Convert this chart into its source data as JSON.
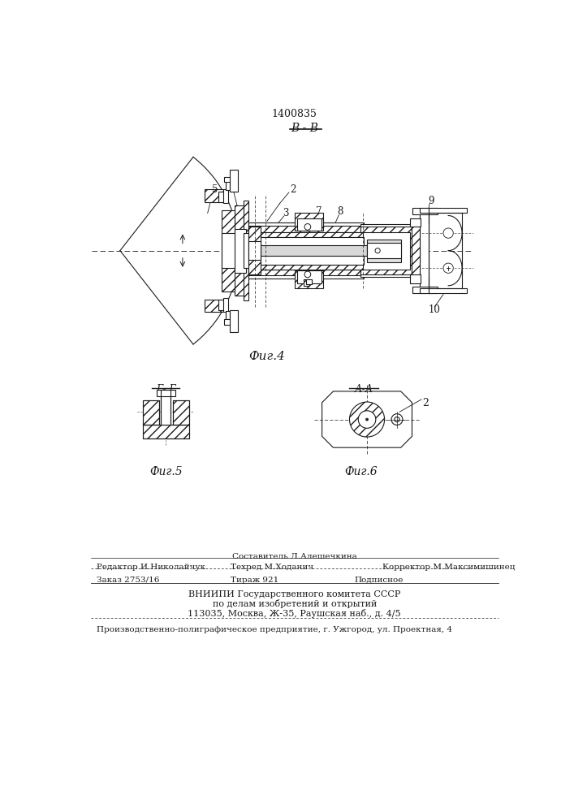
{
  "patent_number": "1400835",
  "fig4_label": "Фиг.4",
  "fig5_label": "Фиг.5",
  "fig6_label": "Фиг.6",
  "section_bb": "В - В",
  "section_gg": "Г- Г",
  "section_aa": "А-А",
  "label2": "2",
  "footer_line1_center": "Составитель Л.Алешечкина",
  "footer_line2_left": "Редактор И.Николайчук",
  "footer_line2_center": "Техред М.Ходанич",
  "footer_line2_right": "Корректор М.Максимишинец",
  "footer_line3_left": "Заказ 2753/16",
  "footer_line3_center": "Тираж 921",
  "footer_line3_right": "Подписное",
  "footer_vniip1": "ВНИИПИ Государственного комитета СССР",
  "footer_vniip2": "по делам изобретений и открытий",
  "footer_vniip3": "113035, Москва, Ж-35, Раушская наб., д. 4/5",
  "footer_bottom": "Производственно-полиграфическое предприятие, г. Ужгород, ул. Проектная, 4",
  "bg_color": "#ffffff",
  "line_color": "#1a1a1a"
}
